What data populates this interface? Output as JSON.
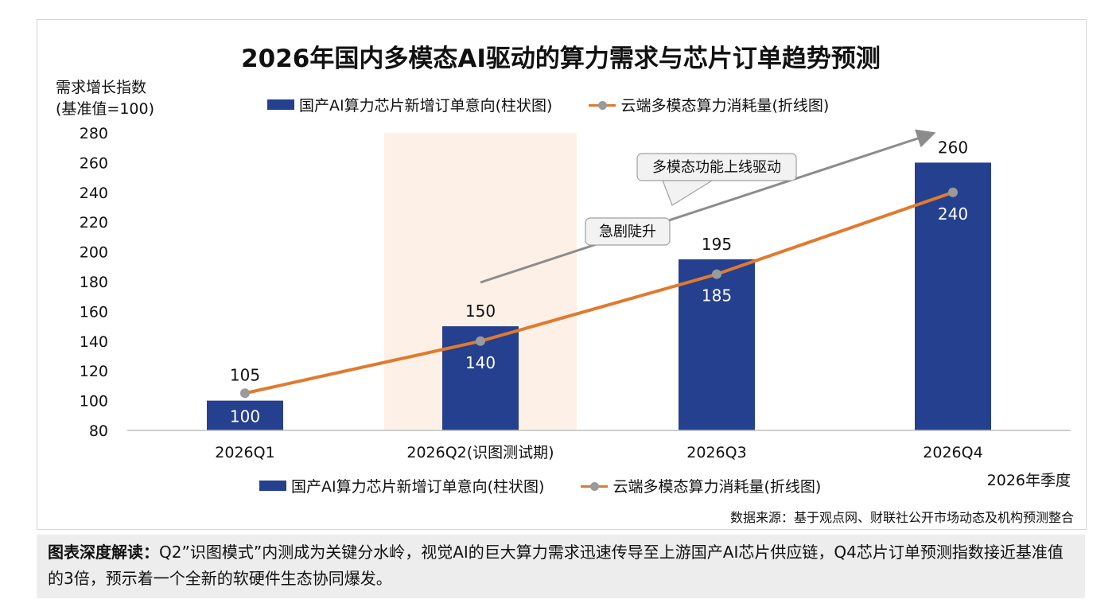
{
  "chart_data": {
    "type": "bar",
    "title": "2026年国内多模态AI驱动的算力需求与芯片订单趋势预测",
    "ylabel": "需求增长指数\n(基准值=100)",
    "xlabel": "2026年季度",
    "ylim": [
      80,
      280
    ],
    "yticks": [
      80,
      100,
      120,
      140,
      160,
      180,
      200,
      220,
      240,
      260,
      280
    ],
    "categories": [
      "2026Q1",
      "2026Q2(识图测试期)",
      "2026Q3",
      "2026Q4"
    ],
    "series": [
      {
        "name": "国产AI算力芯片新增订单意向(柱状图)",
        "type": "bar",
        "values": [
          100,
          150,
          195,
          260
        ],
        "color": "#24408e"
      },
      {
        "name": "云端多模态算力消耗量(折线图)",
        "type": "line",
        "values": [
          105,
          140,
          185,
          240
        ],
        "color": "#e07a2e"
      }
    ],
    "highlight_category": "2026Q2(识图测试期)",
    "highlight_color": "#fdf0e6",
    "annotations": [
      "多模态功能上线驱动",
      "急剧陡升"
    ],
    "grid": false,
    "legend_position": "top"
  },
  "source": "数据来源：基于观点网、财联社公开市场动态及机构预测整合",
  "interpretation": {
    "label": "图表深度解读：",
    "text": "Q2”识图模式”内测成为关键分水岭，视觉AI的巨大算力需求迅速传导至上游国产AI芯片供应链，Q4芯片订单预测指数接近基准值的3倍，预示着一个全新的软硬件生态协同爆发。"
  }
}
